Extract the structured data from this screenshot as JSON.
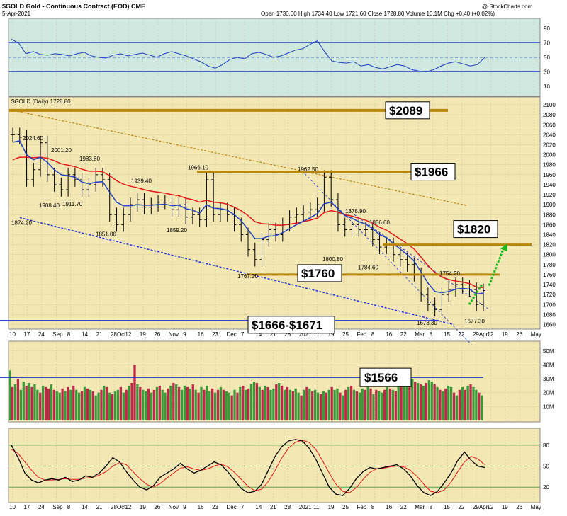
{
  "header": {
    "symbol_line": "$GOLD Gold - Continuous Contract (EOD) CME",
    "date": "5-Apr-2021",
    "ohlc": "Open 1730.00  High 1734.40  Low 1721.60  Close 1728.80  Volume 10.1M  Chg +0.40 (+0.02%)",
    "credit": "@ StockCharts.com",
    "price_legend": "$GOLD (Daily) 1728.80"
  },
  "colors": {
    "rsi_bg": "#cfe8e0",
    "price_bg": "#f3e7b4",
    "level_line": "#b8860b",
    "up_bar": "#3a9a3a",
    "down_bar": "#c0284a",
    "ema_fast": "#1f3fbf",
    "ema_slow": "#e01818",
    "trend": "#1a2fd6",
    "arrow": "#1fb81f"
  },
  "chart_data": [
    {
      "type": "line",
      "name": "rsi-panel",
      "yticks": [
        10,
        30,
        50,
        70,
        90
      ],
      "ylim": [
        0,
        100
      ],
      "reference_lines": [
        30,
        50,
        70
      ],
      "values": [
        75,
        70,
        55,
        58,
        54,
        53,
        55,
        54,
        52,
        55,
        57,
        52,
        50,
        49,
        53,
        55,
        52,
        54,
        56,
        53,
        50,
        55,
        58,
        55,
        52,
        48,
        44,
        38,
        35,
        40,
        47,
        50,
        48,
        55,
        57,
        54,
        50,
        52,
        56,
        60,
        62,
        68,
        73,
        58,
        45,
        43,
        42,
        44,
        38,
        40,
        36,
        34,
        37,
        40,
        38,
        33,
        31,
        30,
        33,
        38,
        42,
        44,
        41,
        38,
        40,
        50
      ]
    },
    {
      "type": "line",
      "name": "price-panel",
      "title": "$GOLD (Daily) 1728.80",
      "ylim": [
        1655,
        2110
      ],
      "yticks": [
        1660,
        1680,
        1700,
        1720,
        1740,
        1760,
        1780,
        1800,
        1820,
        1840,
        1860,
        1880,
        1900,
        1920,
        1940,
        1960,
        1980,
        2000,
        2020,
        2040,
        2060,
        2080,
        2100
      ],
      "xlabels": [
        "10",
        "17",
        "24",
        "Sep",
        "8",
        "14",
        "21",
        "28Oct",
        "12",
        "19",
        "26",
        "Nov",
        "9",
        "16",
        "23",
        "Dec",
        "7",
        "14",
        "21",
        "28",
        "2021",
        "11",
        "19",
        "25",
        "Feb",
        "8",
        "16",
        "22",
        "Mar",
        "8",
        "15",
        "22",
        "29Apr",
        "12",
        "19",
        "26",
        "May"
      ],
      "close": [
        2040,
        2035,
        1950,
        1970,
        2024,
        1960,
        1940,
        1930,
        1960,
        1950,
        1930,
        1940,
        1960,
        1950,
        1880,
        1860,
        1880,
        1900,
        1910,
        1895,
        1900,
        1905,
        1905,
        1890,
        1900,
        1875,
        1880,
        1870,
        1950,
        1880,
        1890,
        1880,
        1860,
        1840,
        1810,
        1790,
        1830,
        1850,
        1840,
        1860,
        1875,
        1880,
        1885,
        1890,
        1900,
        1955,
        1910,
        1860,
        1850,
        1860,
        1850,
        1850,
        1830,
        1815,
        1820,
        1800,
        1790,
        1780,
        1760,
        1720,
        1700,
        1690,
        1720,
        1730,
        1740,
        1735,
        1730,
        1700,
        1728
      ],
      "ema_fast": [
        2025,
        2028,
        2000,
        1990,
        1995,
        1985,
        1970,
        1960,
        1958,
        1955,
        1945,
        1942,
        1945,
        1946,
        1925,
        1905,
        1898,
        1898,
        1900,
        1899,
        1899,
        1900,
        1901,
        1898,
        1899,
        1892,
        1889,
        1883,
        1900,
        1893,
        1892,
        1889,
        1880,
        1868,
        1850,
        1832,
        1832,
        1837,
        1838,
        1844,
        1852,
        1860,
        1867,
        1874,
        1882,
        1902,
        1905,
        1891,
        1878,
        1873,
        1866,
        1861,
        1852,
        1840,
        1834,
        1822,
        1811,
        1800,
        1787,
        1765,
        1743,
        1726,
        1724,
        1726,
        1731,
        1732,
        1731,
        1721,
        1723
      ],
      "ema_slow": [
        1990,
        1995,
        1995,
        1994,
        1995,
        1993,
        1988,
        1982,
        1979,
        1976,
        1971,
        1967,
        1967,
        1966,
        1958,
        1948,
        1941,
        1937,
        1934,
        1930,
        1927,
        1925,
        1923,
        1920,
        1918,
        1913,
        1910,
        1905,
        1909,
        1905,
        1904,
        1901,
        1895,
        1888,
        1878,
        1866,
        1862,
        1861,
        1859,
        1859,
        1861,
        1863,
        1866,
        1869,
        1873,
        1884,
        1888,
        1885,
        1880,
        1877,
        1873,
        1869,
        1863,
        1855,
        1849,
        1840,
        1831,
        1822,
        1811,
        1795,
        1778,
        1764,
        1755,
        1750,
        1747,
        1745,
        1742,
        1735,
        1734
      ],
      "annotations": [
        {
          "text": "2024.60",
          "value": 2024.6
        },
        {
          "text": "2001.20",
          "value": 2001.2
        },
        {
          "text": "1983.80",
          "value": 1983.8
        },
        {
          "text": "1939.40",
          "value": 1939.4
        },
        {
          "text": "1966.10",
          "value": 1966.1
        },
        {
          "text": "1962.50",
          "value": 1962.5
        },
        {
          "text": "1878.90",
          "value": 1878.9
        },
        {
          "text": "1856.60",
          "value": 1856.6
        },
        {
          "text": "1908.40",
          "value": 1908.4
        },
        {
          "text": "1911.70",
          "value": 1911.7
        },
        {
          "text": "1874.20",
          "value": 1874.2
        },
        {
          "text": "1851.00",
          "value": 1851.0
        },
        {
          "text": "1859.20",
          "value": 1859.2
        },
        {
          "text": "1767.20",
          "value": 1767.2
        },
        {
          "text": "1800.80",
          "value": 1800.8
        },
        {
          "text": "1784.60",
          "value": 1784.6
        },
        {
          "text": "1754.20",
          "value": 1754.2
        },
        {
          "text": "1673.30",
          "value": 1673.3
        },
        {
          "text": "1677.30",
          "value": 1677.3
        }
      ],
      "levels": [
        {
          "label": "$2089",
          "value": 2089
        },
        {
          "label": "$1966",
          "value": 1966
        },
        {
          "label": "$1820",
          "value": 1820
        },
        {
          "label": "$1760",
          "value": 1760
        },
        {
          "label": "$1666-$1671",
          "value": 1668
        }
      ]
    },
    {
      "type": "bar",
      "name": "volume-panel",
      "yticks_label": [
        "10M",
        "20M",
        "30M",
        "40M",
        "50M"
      ],
      "yticks": [
        10,
        20,
        30,
        40,
        50
      ],
      "ylim": [
        0,
        55
      ],
      "level": {
        "label": "$1566",
        "value": 31
      },
      "values": [
        36,
        24,
        26,
        30,
        22,
        28,
        25,
        27,
        24,
        26,
        22,
        20,
        25,
        24,
        23,
        26,
        22,
        21,
        20,
        23,
        21,
        24,
        22,
        25,
        22,
        20,
        21,
        24,
        23,
        22,
        21,
        18,
        20,
        22,
        25,
        24,
        20,
        19,
        21,
        22,
        24,
        20,
        22,
        25,
        27,
        40,
        26,
        24,
        22,
        21,
        23,
        20,
        22,
        24,
        25,
        22,
        20,
        23,
        25,
        27,
        26,
        24,
        22,
        25,
        24,
        23,
        26,
        22,
        20,
        24,
        22,
        25,
        21,
        23,
        20,
        22,
        24,
        22,
        21,
        20,
        18,
        22,
        20,
        24,
        25,
        22,
        23,
        26,
        28,
        27,
        24,
        22,
        25,
        24,
        22,
        23,
        26,
        27,
        25,
        22,
        24,
        22,
        21,
        23,
        20,
        18,
        22,
        24,
        23,
        21,
        22,
        20,
        19,
        21,
        20,
        22,
        24,
        22,
        23,
        20,
        18,
        22,
        24,
        25,
        22,
        21,
        20,
        23,
        22,
        24,
        23,
        19,
        22,
        21,
        20,
        22,
        24,
        23,
        22,
        21,
        26,
        28,
        30,
        32,
        34,
        30,
        28,
        27,
        26,
        25,
        27,
        29,
        28,
        26,
        24,
        22,
        21,
        23,
        25,
        24,
        20,
        18,
        22,
        24,
        22,
        25,
        26,
        24,
        22,
        20,
        18
      ],
      "up": [
        1,
        0,
        1,
        0,
        1,
        1,
        0,
        1,
        0,
        1,
        1,
        0,
        1,
        0,
        0,
        1,
        0,
        1,
        1,
        0,
        1,
        0,
        1,
        0,
        1,
        1,
        0,
        1,
        0,
        1,
        0,
        1,
        1,
        0,
        1,
        0,
        1,
        0,
        1,
        1,
        0,
        1,
        0,
        1,
        0,
        0,
        1,
        0,
        1,
        1,
        0,
        1,
        0,
        1,
        0,
        1,
        1,
        0,
        1,
        0,
        1,
        0,
        1,
        1,
        0,
        1,
        0,
        1,
        0,
        1,
        0,
        1,
        1,
        0,
        1,
        0,
        1,
        0,
        1,
        1,
        0,
        1,
        0,
        1,
        0,
        1,
        0,
        1,
        1,
        0,
        1,
        0,
        1,
        0,
        1,
        1,
        0,
        1,
        0,
        1,
        0,
        1,
        0,
        1,
        1,
        0,
        1,
        0,
        1,
        0,
        1,
        1,
        0,
        1,
        0,
        1,
        0,
        1,
        1,
        0,
        1,
        0,
        1,
        0,
        1,
        0,
        1,
        1,
        0,
        1,
        0,
        1,
        0,
        1,
        1,
        0,
        1,
        0,
        1,
        0,
        1,
        0,
        1,
        1,
        0,
        1,
        0,
        1,
        0,
        1,
        0,
        1,
        1,
        0,
        1,
        0,
        1,
        0,
        1,
        1,
        0,
        1,
        0,
        1,
        0,
        1,
        0,
        1,
        1,
        0,
        1
      ]
    },
    {
      "type": "line",
      "name": "stochastic-panel",
      "yticks": [
        20,
        50,
        80
      ],
      "ylim": [
        0,
        100
      ],
      "k": [
        80,
        62,
        40,
        30,
        26,
        30,
        32,
        30,
        34,
        28,
        30,
        36,
        34,
        40,
        50,
        62,
        56,
        42,
        30,
        20,
        16,
        22,
        34,
        40,
        46,
        54,
        46,
        40,
        44,
        50,
        56,
        52,
        42,
        30,
        18,
        12,
        14,
        24,
        44,
        64,
        78,
        86,
        88,
        86,
        76,
        60,
        40,
        20,
        10,
        8,
        18,
        32,
        42,
        48,
        46,
        48,
        50,
        52,
        46,
        36,
        22,
        12,
        8,
        14,
        26,
        40,
        58,
        70,
        58,
        50,
        48
      ],
      "d": [
        74,
        68,
        56,
        44,
        34,
        30,
        30,
        31,
        32,
        31,
        31,
        33,
        34,
        37,
        42,
        50,
        55,
        52,
        42,
        32,
        24,
        20,
        25,
        33,
        40,
        47,
        49,
        46,
        44,
        46,
        50,
        53,
        49,
        41,
        31,
        21,
        15,
        17,
        28,
        44,
        62,
        76,
        84,
        87,
        84,
        74,
        58,
        40,
        24,
        14,
        12,
        19,
        31,
        41,
        46,
        47,
        49,
        50,
        49,
        44,
        35,
        24,
        14,
        12,
        16,
        27,
        42,
        56,
        64,
        60,
        52
      ]
    }
  ]
}
